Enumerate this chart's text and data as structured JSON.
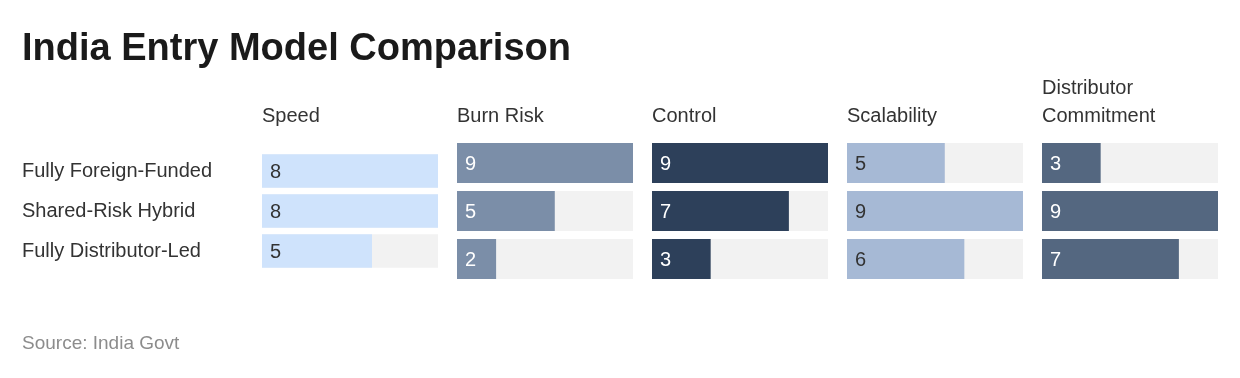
{
  "chart_data": [
    {
      "type": "other",
      "title": "India Entry Model Comparison",
      "annotations": [
        "Source: India Govt"
      ]
    },
    {
      "type": "bar",
      "orientation": "horizontal",
      "title": "Speed",
      "categories": [
        "Fully Foreign-Funded",
        "Shared-Risk Hybrid",
        "Fully Distributor-Led"
      ],
      "values": [
        8,
        8,
        5
      ],
      "color": "#cfe3fc",
      "xlim": [
        0,
        8
      ],
      "data_labels": true,
      "tick_labels": "y"
    },
    {
      "type": "bar",
      "orientation": "horizontal",
      "title": "Burn Risk",
      "categories": [
        null,
        null,
        null
      ],
      "values": [
        9,
        5,
        2
      ],
      "color": "#7b8ea8",
      "xlim": [
        0,
        9
      ],
      "data_labels": true,
      "tick_labels": false
    },
    {
      "type": "bar",
      "orientation": "horizontal",
      "title": "Control",
      "categories": [
        null,
        null,
        null
      ],
      "values": [
        9,
        7,
        3
      ],
      "color": "#2d405a",
      "xlim": [
        0,
        9
      ],
      "data_labels": true,
      "tick_labels": false
    },
    {
      "type": "bar",
      "orientation": "horizontal",
      "title": "Scalability",
      "categories": [
        null,
        null,
        null
      ],
      "values": [
        5,
        9,
        6
      ],
      "color": "#a6b9d5",
      "xlim": [
        0,
        9
      ],
      "data_labels": true,
      "tick_labels": false
    },
    {
      "type": "bar",
      "orientation": "horizontal",
      "title": "Distributor Commitment",
      "categories": [
        null,
        null,
        null
      ],
      "values": [
        3,
        9,
        7
      ],
      "color": "#546780",
      "xlim": [
        0,
        9
      ],
      "data_labels": true,
      "tick_labels": false
    }
  ]
}
